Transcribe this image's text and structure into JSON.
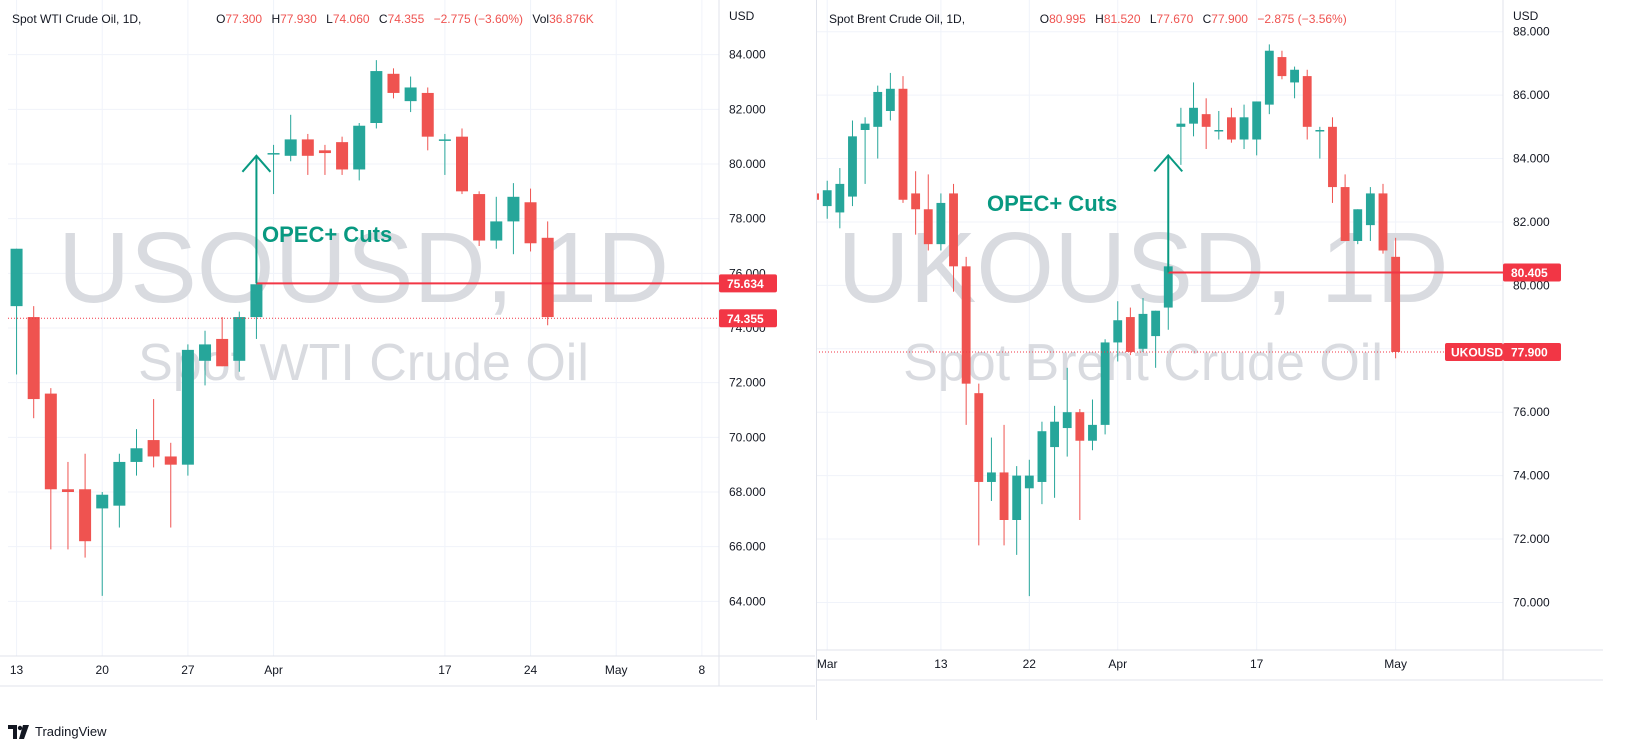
{
  "footer": {
    "brand": "TradingView",
    "icon": "tradingview-logo-icon"
  },
  "chart_data": [
    {
      "type": "candlestick",
      "symbol_title": "Spot WTI Crude Oil, 1D,",
      "watermark_ticker": "USOUSD, 1D",
      "watermark_name": "Spot WTI Crude Oil",
      "currency": "USD",
      "legend": {
        "o_label": "O",
        "o": "77.300",
        "h_label": "H",
        "h": "77.930",
        "l_label": "L",
        "l": "74.060",
        "c_label": "C",
        "c": "74.355",
        "chg": "−2.775 (−3.60%)",
        "vol_label": "Vol",
        "vol": "36.876K"
      },
      "ylim": [
        62.0,
        86.0
      ],
      "y_ticks": [
        "64.000",
        "66.000",
        "68.000",
        "70.000",
        "72.000",
        "74.000",
        "76.000",
        "78.000",
        "80.000",
        "82.000",
        "84.000"
      ],
      "x_ticks": [
        {
          "label": "13",
          "x": 0
        },
        {
          "label": "20",
          "x": 5
        },
        {
          "label": "27",
          "x": 10
        },
        {
          "label": "Apr",
          "x": 15
        },
        {
          "label": "17",
          "x": 25
        },
        {
          "label": "24",
          "x": 30
        },
        {
          "label": "May",
          "x": 35
        },
        {
          "label": "8",
          "x": 40
        }
      ],
      "x_range": [
        -0.5,
        41.0
      ],
      "candles": [
        {
          "x": 0,
          "o": 74.8,
          "h": 76.9,
          "l": 72.3,
          "c": 76.9
        },
        {
          "x": 1,
          "o": 74.4,
          "h": 74.8,
          "l": 70.7,
          "c": 71.4
        },
        {
          "x": 2,
          "o": 71.6,
          "h": 71.8,
          "l": 65.9,
          "c": 68.1
        },
        {
          "x": 3,
          "o": 68.1,
          "h": 69.1,
          "l": 65.9,
          "c": 68.0
        },
        {
          "x": 4,
          "o": 68.1,
          "h": 69.4,
          "l": 65.6,
          "c": 66.2
        },
        {
          "x": 5,
          "o": 67.4,
          "h": 68.0,
          "l": 64.2,
          "c": 67.9
        },
        {
          "x": 6,
          "o": 67.5,
          "h": 69.4,
          "l": 66.7,
          "c": 69.1
        },
        {
          "x": 7,
          "o": 69.1,
          "h": 70.3,
          "l": 68.6,
          "c": 69.6
        },
        {
          "x": 8,
          "o": 69.9,
          "h": 71.4,
          "l": 68.9,
          "c": 69.3
        },
        {
          "x": 9,
          "o": 69.3,
          "h": 69.8,
          "l": 66.7,
          "c": 69.0
        },
        {
          "x": 10,
          "o": 69.0,
          "h": 73.4,
          "l": 68.6,
          "c": 73.2
        },
        {
          "x": 11,
          "o": 72.8,
          "h": 73.9,
          "l": 71.9,
          "c": 73.4
        },
        {
          "x": 12,
          "o": 73.6,
          "h": 74.4,
          "l": 72.6,
          "c": 72.6
        },
        {
          "x": 13,
          "o": 72.8,
          "h": 74.6,
          "l": 72.4,
          "c": 74.4
        },
        {
          "x": 14,
          "o": 74.4,
          "h": 75.9,
          "l": 73.6,
          "c": 75.6
        },
        {
          "x": 15,
          "o": 80.4,
          "h": 80.7,
          "l": 78.9,
          "c": 80.4
        },
        {
          "x": 16,
          "o": 80.3,
          "h": 81.8,
          "l": 80.1,
          "c": 80.9
        },
        {
          "x": 17,
          "o": 80.9,
          "h": 81.1,
          "l": 79.6,
          "c": 80.3
        },
        {
          "x": 18,
          "o": 80.5,
          "h": 80.7,
          "l": 79.6,
          "c": 80.4
        },
        {
          "x": 19,
          "o": 80.8,
          "h": 81.0,
          "l": 79.6,
          "c": 79.8
        },
        {
          "x": 20,
          "o": 79.8,
          "h": 81.5,
          "l": 79.4,
          "c": 81.4
        },
        {
          "x": 21,
          "o": 81.5,
          "h": 83.8,
          "l": 81.3,
          "c": 83.4
        },
        {
          "x": 22,
          "o": 83.3,
          "h": 83.5,
          "l": 82.4,
          "c": 82.6
        },
        {
          "x": 23,
          "o": 82.3,
          "h": 83.2,
          "l": 81.9,
          "c": 82.8
        },
        {
          "x": 24,
          "o": 82.6,
          "h": 82.8,
          "l": 80.5,
          "c": 81.0
        },
        {
          "x": 25,
          "o": 80.9,
          "h": 81.1,
          "l": 79.6,
          "c": 80.9
        },
        {
          "x": 26,
          "o": 81.0,
          "h": 81.3,
          "l": 78.9,
          "c": 79.0
        },
        {
          "x": 27,
          "o": 78.9,
          "h": 79.0,
          "l": 77.0,
          "c": 77.2
        },
        {
          "x": 28,
          "o": 77.2,
          "h": 78.8,
          "l": 76.9,
          "c": 77.9
        },
        {
          "x": 29,
          "o": 77.9,
          "h": 79.3,
          "l": 76.7,
          "c": 78.8
        },
        {
          "x": 30,
          "o": 78.6,
          "h": 79.1,
          "l": 76.8,
          "c": 77.1
        },
        {
          "x": 31,
          "o": 77.3,
          "h": 77.9,
          "l": 74.1,
          "c": 74.4
        }
      ],
      "price_lines": [
        {
          "value": 75.634,
          "label": "75.634",
          "style": "solid",
          "from_x": 14
        },
        {
          "value": 74.355,
          "label": "74.355",
          "style": "dotted",
          "from_x": -0.5
        }
      ],
      "annotation": {
        "text": "OPEC+ Cuts",
        "x": 14,
        "y_from": 75.634,
        "y_to": 80.3
      },
      "up_color": "#26a69a",
      "down_color": "#ef5350"
    },
    {
      "type": "candlestick",
      "symbol_title": "Spot Brent Crude Oil, 1D,",
      "watermark_ticker": "UKOUSD, 1D",
      "watermark_name": "Spot Brent Crude Oil",
      "currency": "USD",
      "legend": {
        "o_label": "O",
        "o": "80.995",
        "h_label": "H",
        "h": "81.520",
        "l_label": "L",
        "l": "77.670",
        "c_label": "C",
        "c": "77.900",
        "chg": "−2.875 (−3.56%)"
      },
      "ylim": [
        68.5,
        89.0
      ],
      "y_ticks": [
        "70.000",
        "72.000",
        "74.000",
        "76.000",
        "78.000",
        "80.000",
        "82.000",
        "84.000",
        "86.000",
        "88.000"
      ],
      "x_ticks": [
        {
          "label": "Mar",
          "x": 3
        },
        {
          "label": "13",
          "x": 12
        },
        {
          "label": "22",
          "x": 19
        },
        {
          "label": "Apr",
          "x": 26
        },
        {
          "label": "17",
          "x": 37
        },
        {
          "label": "May",
          "x": 48
        }
      ],
      "x_range": [
        -0.5,
        56.5
      ],
      "candles": [
        {
          "x": 0,
          "o": 80.9,
          "h": 82.5,
          "l": 80.3,
          "c": 82.4
        },
        {
          "x": 1,
          "o": 82.3,
          "h": 83.0,
          "l": 81.3,
          "c": 82.9
        },
        {
          "x": 2,
          "o": 82.9,
          "h": 83.5,
          "l": 81.8,
          "c": 82.7
        },
        {
          "x": 3,
          "o": 82.5,
          "h": 83.3,
          "l": 82.1,
          "c": 83.0
        },
        {
          "x": 4,
          "o": 82.3,
          "h": 83.7,
          "l": 81.8,
          "c": 83.2
        },
        {
          "x": 5,
          "o": 82.8,
          "h": 85.2,
          "l": 82.5,
          "c": 84.7
        },
        {
          "x": 6,
          "o": 84.9,
          "h": 85.3,
          "l": 83.2,
          "c": 85.1
        },
        {
          "x": 7,
          "o": 85.0,
          "h": 86.3,
          "l": 84.0,
          "c": 86.1
        },
        {
          "x": 8,
          "o": 85.5,
          "h": 86.7,
          "l": 85.2,
          "c": 86.2
        },
        {
          "x": 9,
          "o": 86.2,
          "h": 86.6,
          "l": 82.6,
          "c": 82.7
        },
        {
          "x": 10,
          "o": 82.9,
          "h": 83.6,
          "l": 81.6,
          "c": 82.4
        },
        {
          "x": 11,
          "o": 82.4,
          "h": 83.5,
          "l": 81.1,
          "c": 81.3
        },
        {
          "x": 12,
          "o": 81.3,
          "h": 82.9,
          "l": 81.1,
          "c": 82.6
        },
        {
          "x": 13,
          "o": 82.9,
          "h": 83.2,
          "l": 79.8,
          "c": 80.6
        },
        {
          "x": 14,
          "o": 80.6,
          "h": 80.9,
          "l": 75.6,
          "c": 76.9
        },
        {
          "x": 15,
          "o": 76.6,
          "h": 76.9,
          "l": 71.8,
          "c": 73.8
        },
        {
          "x": 16,
          "o": 73.8,
          "h": 75.2,
          "l": 73.2,
          "c": 74.1
        },
        {
          "x": 17,
          "o": 74.1,
          "h": 75.6,
          "l": 71.8,
          "c": 72.6
        },
        {
          "x": 18,
          "o": 72.6,
          "h": 74.3,
          "l": 71.5,
          "c": 74.0
        },
        {
          "x": 19,
          "o": 73.6,
          "h": 74.5,
          "l": 70.2,
          "c": 74.0
        },
        {
          "x": 20,
          "o": 73.8,
          "h": 75.7,
          "l": 73.1,
          "c": 75.4
        },
        {
          "x": 21,
          "o": 74.9,
          "h": 76.2,
          "l": 73.3,
          "c": 75.7
        },
        {
          "x": 22,
          "o": 75.5,
          "h": 77.4,
          "l": 74.6,
          "c": 76.0
        },
        {
          "x": 23,
          "o": 76.0,
          "h": 76.1,
          "l": 72.6,
          "c": 75.1
        },
        {
          "x": 24,
          "o": 75.1,
          "h": 76.4,
          "l": 74.8,
          "c": 75.6
        },
        {
          "x": 25,
          "o": 75.6,
          "h": 78.3,
          "l": 75.3,
          "c": 78.2
        },
        {
          "x": 26,
          "o": 78.2,
          "h": 79.5,
          "l": 77.6,
          "c": 78.9
        },
        {
          "x": 27,
          "o": 79.0,
          "h": 79.3,
          "l": 77.8,
          "c": 77.9
        },
        {
          "x": 28,
          "o": 78.0,
          "h": 79.6,
          "l": 77.9,
          "c": 79.1
        },
        {
          "x": 29,
          "o": 78.4,
          "h": 79.2,
          "l": 77.4,
          "c": 79.2
        },
        {
          "x": 30,
          "o": 79.3,
          "h": 80.8,
          "l": 78.6,
          "c": 80.6
        },
        {
          "x": 31,
          "o": 85.0,
          "h": 85.6,
          "l": 83.8,
          "c": 85.1
        },
        {
          "x": 32,
          "o": 85.1,
          "h": 86.4,
          "l": 84.7,
          "c": 85.6
        },
        {
          "x": 33,
          "o": 85.4,
          "h": 85.9,
          "l": 84.3,
          "c": 85.0
        },
        {
          "x": 34,
          "o": 84.9,
          "h": 85.5,
          "l": 84.6,
          "c": 84.9
        },
        {
          "x": 35,
          "o": 85.3,
          "h": 85.6,
          "l": 84.5,
          "c": 84.6
        },
        {
          "x": 36,
          "o": 84.6,
          "h": 85.7,
          "l": 84.3,
          "c": 85.3
        },
        {
          "x": 37,
          "o": 84.6,
          "h": 85.8,
          "l": 84.1,
          "c": 85.8
        },
        {
          "x": 38,
          "o": 85.7,
          "h": 87.6,
          "l": 85.4,
          "c": 87.4
        },
        {
          "x": 39,
          "o": 87.2,
          "h": 87.4,
          "l": 86.5,
          "c": 86.6
        },
        {
          "x": 40,
          "o": 86.4,
          "h": 86.9,
          "l": 85.9,
          "c": 86.8
        },
        {
          "x": 41,
          "o": 86.6,
          "h": 86.8,
          "l": 84.6,
          "c": 85.0
        },
        {
          "x": 42,
          "o": 84.9,
          "h": 85.0,
          "l": 84.0,
          "c": 84.9
        },
        {
          "x": 43,
          "o": 85.0,
          "h": 85.3,
          "l": 82.6,
          "c": 83.1
        },
        {
          "x": 44,
          "o": 83.1,
          "h": 83.5,
          "l": 81.4,
          "c": 81.4
        },
        {
          "x": 45,
          "o": 81.4,
          "h": 82.4,
          "l": 81.3,
          "c": 82.4
        },
        {
          "x": 46,
          "o": 81.9,
          "h": 83.1,
          "l": 81.4,
          "c": 82.9
        },
        {
          "x": 47,
          "o": 82.9,
          "h": 83.2,
          "l": 81.0,
          "c": 81.1
        },
        {
          "x": 48,
          "o": 80.9,
          "h": 81.5,
          "l": 77.7,
          "c": 77.9
        }
      ],
      "price_lines": [
        {
          "value": 80.405,
          "label": "80.405",
          "style": "solid",
          "from_x": 30
        },
        {
          "value": 77.9,
          "label": "77.900",
          "symbol_label": "UKOUSD",
          "style": "dotted",
          "from_x": -0.5
        }
      ],
      "annotation": {
        "text": "OPEC+ Cuts",
        "x": 30,
        "y_from": 80.405,
        "y_to": 84.1
      },
      "up_color": "#26a69a",
      "down_color": "#ef5350"
    }
  ]
}
